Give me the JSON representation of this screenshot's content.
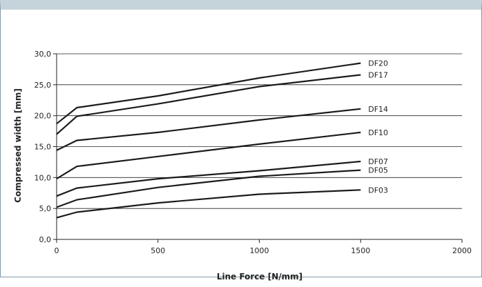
{
  "chart_data": {
    "type": "line",
    "title": "",
    "xlabel": "Line Force [N/mm]",
    "ylabel": "Compressed width [mm]",
    "xlim": [
      0,
      2000
    ],
    "ylim": [
      0,
      30
    ],
    "xticks": [
      "0",
      "500",
      "1000",
      "1500",
      "2000"
    ],
    "yticks": [
      "0,0",
      "5,0",
      "10,0",
      "15,0",
      "20,0",
      "25,0",
      "30,0"
    ],
    "grid": "horizontal",
    "series": [
      {
        "name": "DF20",
        "points": [
          [
            0,
            18.7
          ],
          [
            100,
            21.3
          ],
          [
            500,
            23.2
          ],
          [
            1000,
            26.1
          ],
          [
            1500,
            28.5
          ]
        ]
      },
      {
        "name": "DF17",
        "points": [
          [
            0,
            17.0
          ],
          [
            100,
            19.9
          ],
          [
            500,
            21.9
          ],
          [
            1000,
            24.7
          ],
          [
            1500,
            26.6
          ]
        ]
      },
      {
        "name": "DF14",
        "points": [
          [
            0,
            14.4
          ],
          [
            100,
            16.0
          ],
          [
            500,
            17.3
          ],
          [
            1000,
            19.3
          ],
          [
            1500,
            21.1
          ]
        ]
      },
      {
        "name": "DF10",
        "points": [
          [
            0,
            9.8
          ],
          [
            100,
            11.8
          ],
          [
            500,
            13.4
          ],
          [
            1000,
            15.4
          ],
          [
            1500,
            17.3
          ]
        ]
      },
      {
        "name": "DF07",
        "points": [
          [
            0,
            7.0
          ],
          [
            100,
            8.3
          ],
          [
            500,
            9.8
          ],
          [
            1000,
            11.1
          ],
          [
            1500,
            12.6
          ]
        ]
      },
      {
        "name": "DF05",
        "points": [
          [
            0,
            5.2
          ],
          [
            100,
            6.4
          ],
          [
            500,
            8.4
          ],
          [
            1000,
            10.2
          ],
          [
            1500,
            11.2
          ]
        ]
      },
      {
        "name": "DF03",
        "points": [
          [
            0,
            3.5
          ],
          [
            100,
            4.4
          ],
          [
            500,
            5.9
          ],
          [
            1000,
            7.3
          ],
          [
            1500,
            8.0
          ]
        ]
      }
    ],
    "colors": {
      "line": "#1a1a1a",
      "grid": "#222222",
      "text": "#222222"
    }
  }
}
